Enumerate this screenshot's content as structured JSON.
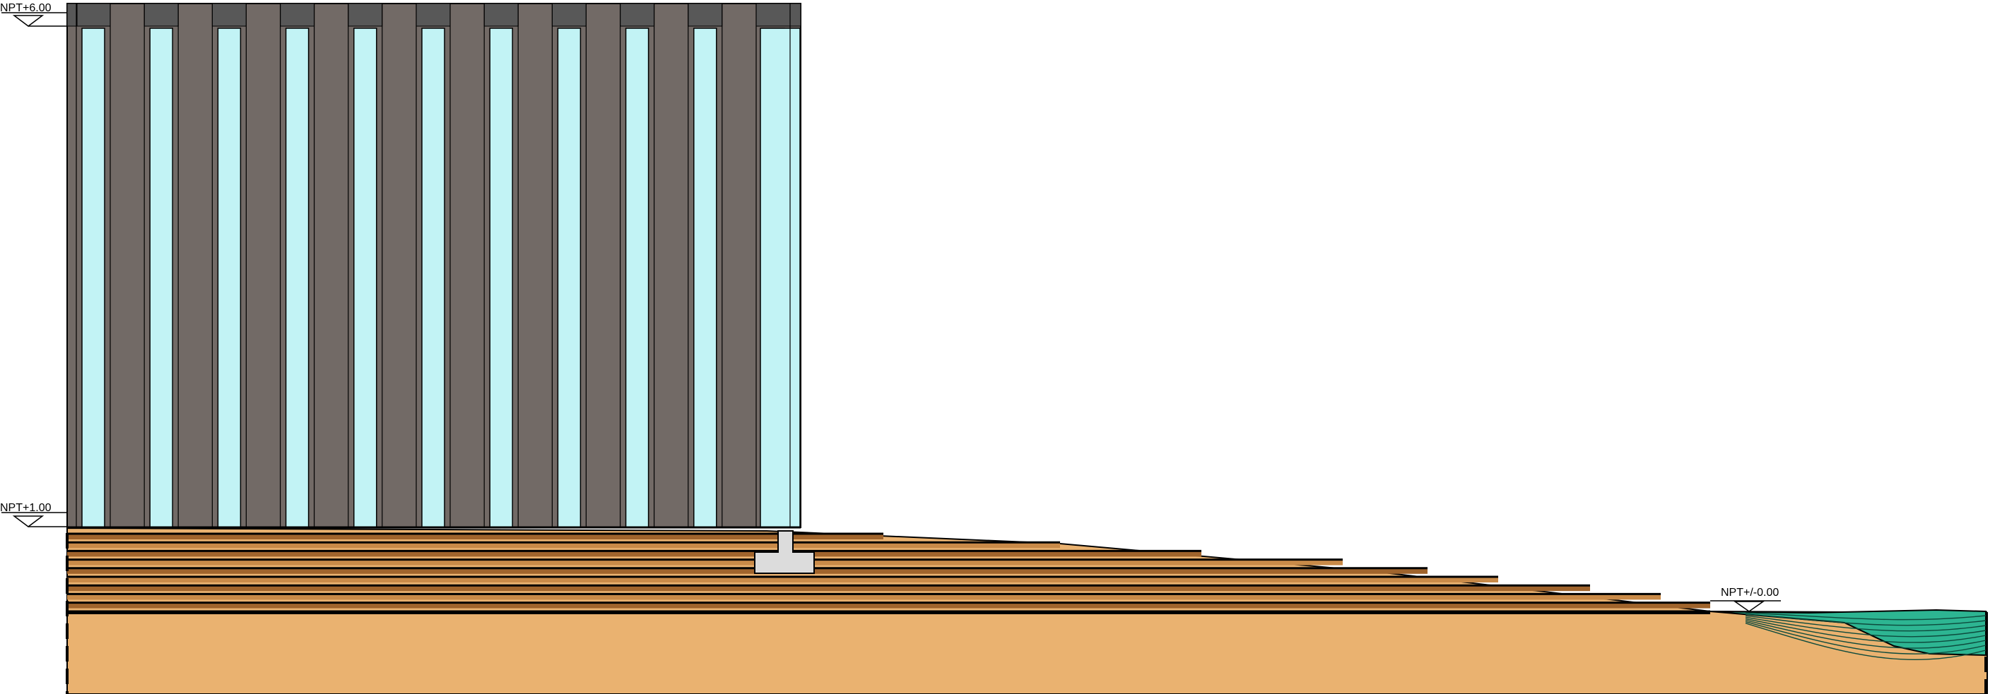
{
  "levels": {
    "top": "NPT+6.00",
    "ground": "NPT+1.00",
    "zero": "NPT+/-0.00"
  },
  "colors": {
    "wall": "#726a66",
    "wall_top": "#585858",
    "glass": "#c2f3f5",
    "terrain": "#eab270",
    "terrain_layer_a": "#a0642c",
    "terrain_layer_b": "#c98a48",
    "footing": "#dcdcdc",
    "water": "#2db592",
    "outline": "#000000"
  }
}
